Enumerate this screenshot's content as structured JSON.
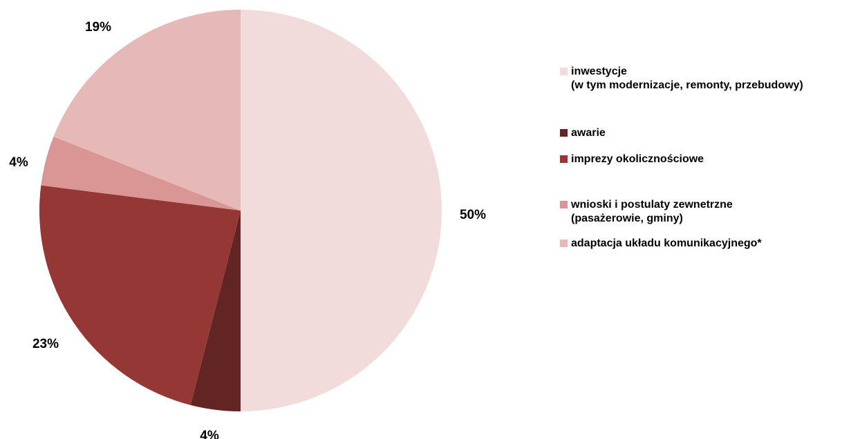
{
  "chart_data": {
    "type": "pie",
    "title": "",
    "start": "12 o'clock, clockwise",
    "series": [
      {
        "name": "inwestycje (w tym modernizacje, remonty, przebudowy)",
        "value": 50,
        "label": "50%",
        "color": "#F2DCDB"
      },
      {
        "name": "awarie",
        "value": 4,
        "label": "4%",
        "color": "#632523"
      },
      {
        "name": "imprezy okolicznościowe",
        "value": 23,
        "label": "23%",
        "color": "#953735"
      },
      {
        "name": "wnioski i postulaty zewnetrzne (pasażerowie, gminy)",
        "value": 4,
        "label": "4%",
        "color": "#D99694"
      },
      {
        "name": "adaptacja układu komunikacyjnego*",
        "value": 19,
        "label": "19%",
        "color": "#E6B9B8"
      }
    ],
    "legend_position": "right"
  },
  "legend": {
    "items": [
      {
        "lines": [
          "inwestycje",
          "(w tym modernizacje, remonty, przebudowy)"
        ]
      },
      {
        "lines": [
          "awarie"
        ]
      },
      {
        "lines": [
          "imprezy okolicznościowe"
        ]
      },
      {
        "lines": [
          "wnioski i postulaty zewnetrzne",
          "(pasażerowie, gminy)"
        ]
      },
      {
        "lines": [
          "adaptacja układu komunikacyjnego*"
        ]
      }
    ]
  }
}
